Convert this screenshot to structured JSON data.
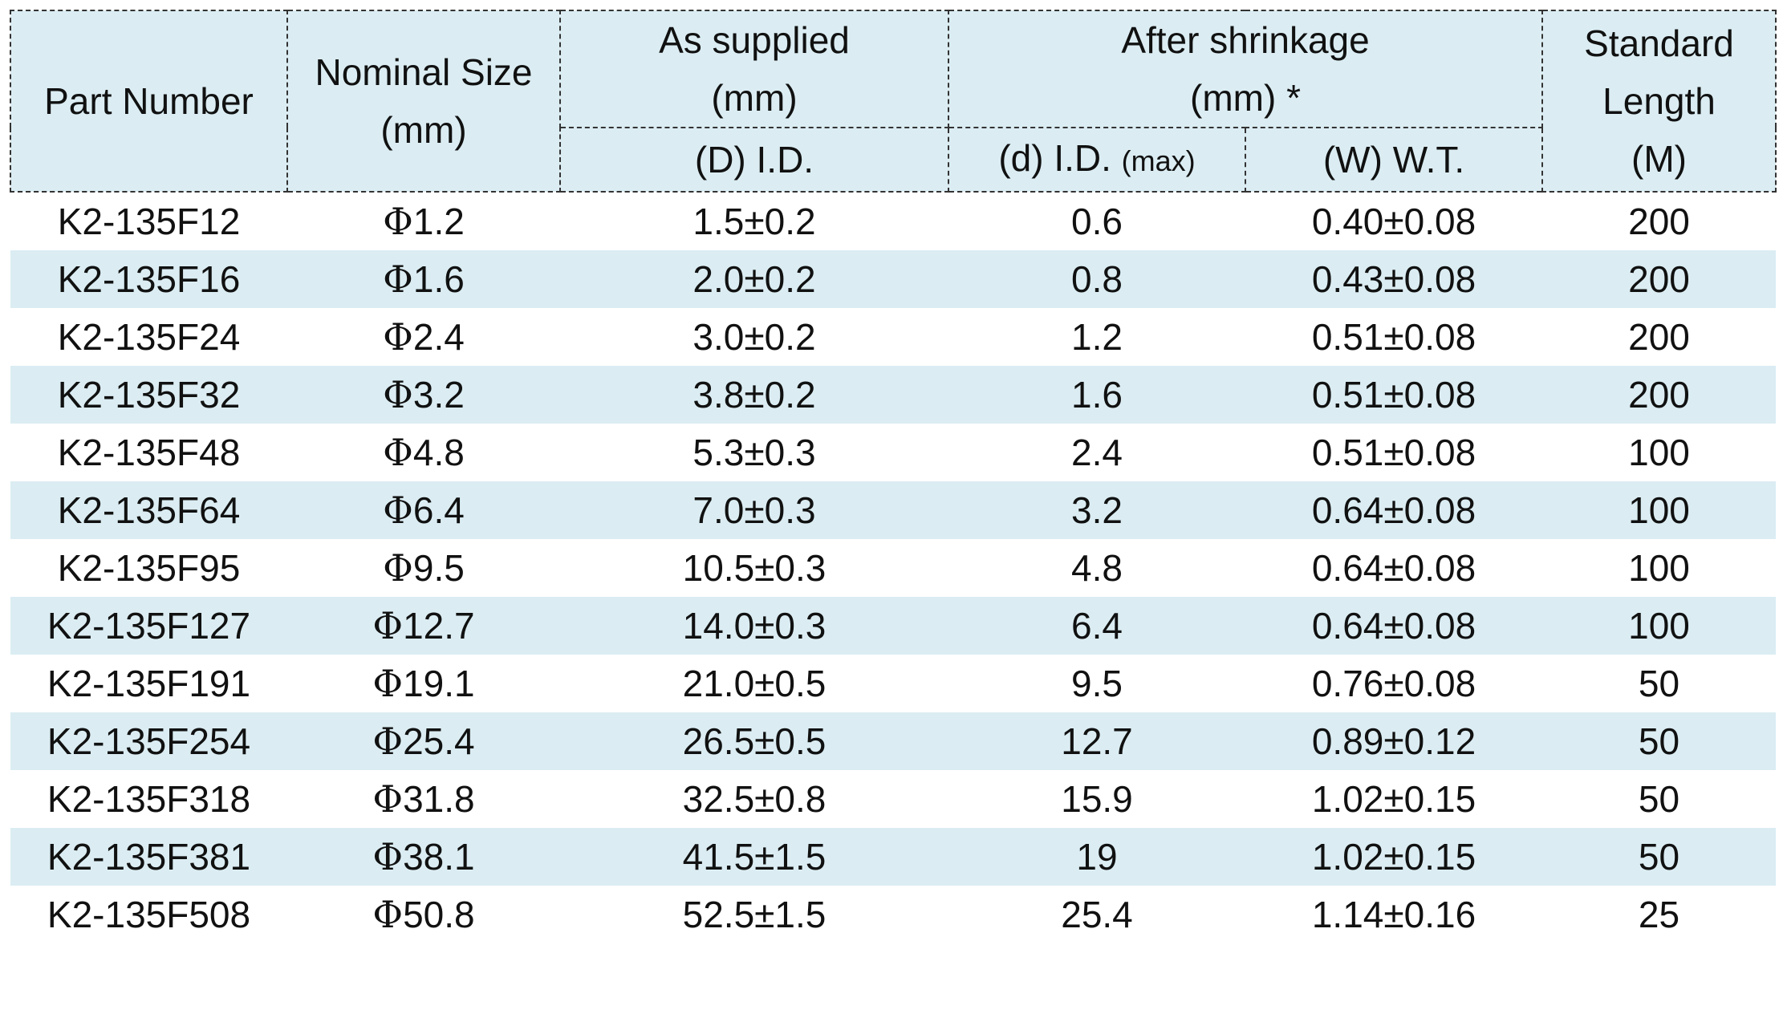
{
  "header": {
    "part_number": "Part Number",
    "nominal_size": "Nominal Size",
    "nominal_size_unit": "(mm)",
    "as_supplied": "As supplied",
    "as_supplied_unit": "(mm)",
    "after_shrinkage": "After shrinkage",
    "after_shrinkage_unit": "(mm) *",
    "standard_length_1": "Standard",
    "standard_length_2": "Length",
    "standard_length_unit": "(M)",
    "sub_d_id": "(D) I.D.",
    "sub_small_d_id": "(d) I.D. ",
    "sub_small_d_id_max": "(max)",
    "sub_wt": "(W) W.T."
  },
  "phi_symbol": "Φ",
  "rows": [
    {
      "part": "K2-135F12",
      "nominal": "1.2",
      "supplied_id": "1.5±0.2",
      "shrunk_id": "0.6",
      "wall": "0.40±0.08",
      "length": "200"
    },
    {
      "part": "K2-135F16",
      "nominal": "1.6",
      "supplied_id": "2.0±0.2",
      "shrunk_id": "0.8",
      "wall": "0.43±0.08",
      "length": "200"
    },
    {
      "part": "K2-135F24",
      "nominal": "2.4",
      "supplied_id": "3.0±0.2",
      "shrunk_id": "1.2",
      "wall": "0.51±0.08",
      "length": "200"
    },
    {
      "part": "K2-135F32",
      "nominal": "3.2",
      "supplied_id": "3.8±0.2",
      "shrunk_id": "1.6",
      "wall": "0.51±0.08",
      "length": "200"
    },
    {
      "part": "K2-135F48",
      "nominal": "4.8",
      "supplied_id": "5.3±0.3",
      "shrunk_id": "2.4",
      "wall": "0.51±0.08",
      "length": "100"
    },
    {
      "part": "K2-135F64",
      "nominal": "6.4",
      "supplied_id": "7.0±0.3",
      "shrunk_id": "3.2",
      "wall": "0.64±0.08",
      "length": "100"
    },
    {
      "part": "K2-135F95",
      "nominal": "9.5",
      "supplied_id": "10.5±0.3",
      "shrunk_id": "4.8",
      "wall": "0.64±0.08",
      "length": "100"
    },
    {
      "part": "K2-135F127",
      "nominal": "12.7",
      "supplied_id": "14.0±0.3",
      "shrunk_id": "6.4",
      "wall": "0.64±0.08",
      "length": "100"
    },
    {
      "part": "K2-135F191",
      "nominal": "19.1",
      "supplied_id": "21.0±0.5",
      "shrunk_id": "9.5",
      "wall": "0.76±0.08",
      "length": "50"
    },
    {
      "part": "K2-135F254",
      "nominal": "25.4",
      "supplied_id": "26.5±0.5",
      "shrunk_id": "12.7",
      "wall": "0.89±0.12",
      "length": "50"
    },
    {
      "part": "K2-135F318",
      "nominal": "31.8",
      "supplied_id": "32.5±0.8",
      "shrunk_id": "15.9",
      "wall": "1.02±0.15",
      "length": "50"
    },
    {
      "part": "K2-135F381",
      "nominal": "38.1",
      "supplied_id": "41.5±1.5",
      "shrunk_id": "19",
      "wall": "1.02±0.15",
      "length": "50"
    },
    {
      "part": "K2-135F508",
      "nominal": "50.8",
      "supplied_id": "52.5±1.5",
      "shrunk_id": "25.4",
      "wall": "1.14±0.16",
      "length": "25"
    }
  ]
}
